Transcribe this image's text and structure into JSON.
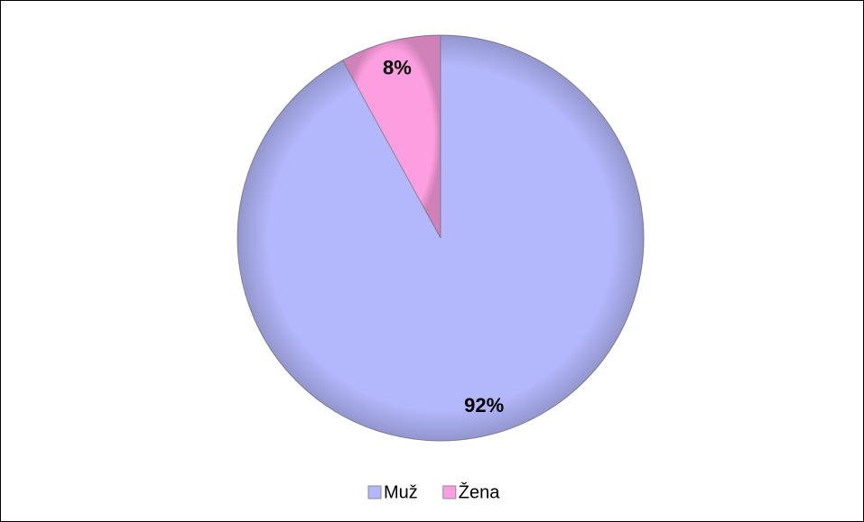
{
  "chart_data": {
    "type": "pie",
    "categories": [
      "Muž",
      "Žena"
    ],
    "values": [
      92,
      8
    ],
    "value_labels": [
      "92%",
      "8%"
    ],
    "colors": [
      "#b3b7fb",
      "#fd9ee0"
    ],
    "legend": "bottom"
  }
}
